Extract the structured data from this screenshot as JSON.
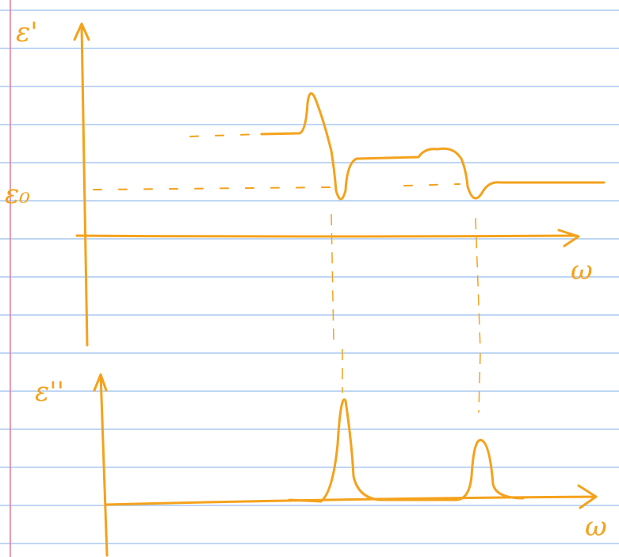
{
  "labels": {
    "top_y": "ε'",
    "baseline": "ε₀",
    "top_x": "ω",
    "bottom_y": "ε''",
    "bottom_x": "ω"
  }
}
